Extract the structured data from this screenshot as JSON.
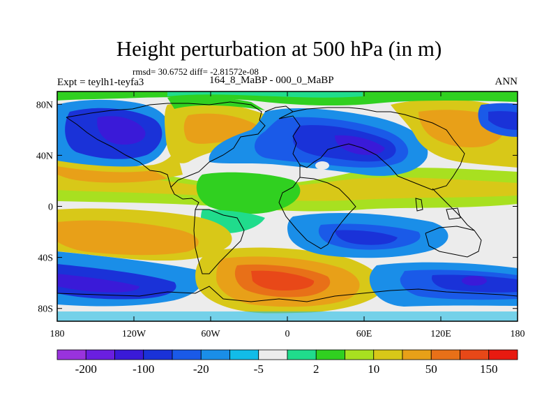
{
  "title": "Height perturbation at 500 hPa (in m)",
  "stats": "rmsd= 30.6752 diff= -2.81572e-08",
  "experiment": "Expt = teylh1-teyfa3",
  "subtitle": "164_8_MaBP - 000_0_MaBP",
  "season": "ANN",
  "map": {
    "projection": "cylindrical-equidistant",
    "lon_range": [
      -180,
      180
    ],
    "lat_range": [
      -90,
      90
    ],
    "lon_ticks": [
      {
        "value": -180,
        "label": "180"
      },
      {
        "value": -120,
        "label": "120W"
      },
      {
        "value": -60,
        "label": "60W"
      },
      {
        "value": 0,
        "label": "0"
      },
      {
        "value": 60,
        "label": "60E"
      },
      {
        "value": 120,
        "label": "120E"
      },
      {
        "value": 180,
        "label": "180"
      }
    ],
    "lat_ticks": [
      {
        "value": 80,
        "label": "80N"
      },
      {
        "value": 40,
        "label": "40N"
      },
      {
        "value": 0,
        "label": "0"
      },
      {
        "value": -40,
        "label": "40S"
      },
      {
        "value": -80,
        "label": "80S"
      }
    ]
  },
  "colorbar": {
    "colors": [
      "#9933dd",
      "#6a1fe0",
      "#3a1ad8",
      "#1a32d8",
      "#1a5ae8",
      "#1a8ee8",
      "#12bce8",
      "#ececec",
      "#20dc8c",
      "#30d020",
      "#a8e020",
      "#d8c818",
      "#e8a018",
      "#e87018",
      "#e84818",
      "#e81a10"
    ],
    "labels": [
      {
        "index": 1,
        "text": "-200"
      },
      {
        "index": 3,
        "text": "-100"
      },
      {
        "index": 5,
        "text": "-20"
      },
      {
        "index": 7,
        "text": "-5"
      },
      {
        "index": 9,
        "text": "2"
      },
      {
        "index": 11,
        "text": "10"
      },
      {
        "index": 13,
        "text": "50"
      },
      {
        "index": 15,
        "text": "150"
      }
    ]
  }
}
